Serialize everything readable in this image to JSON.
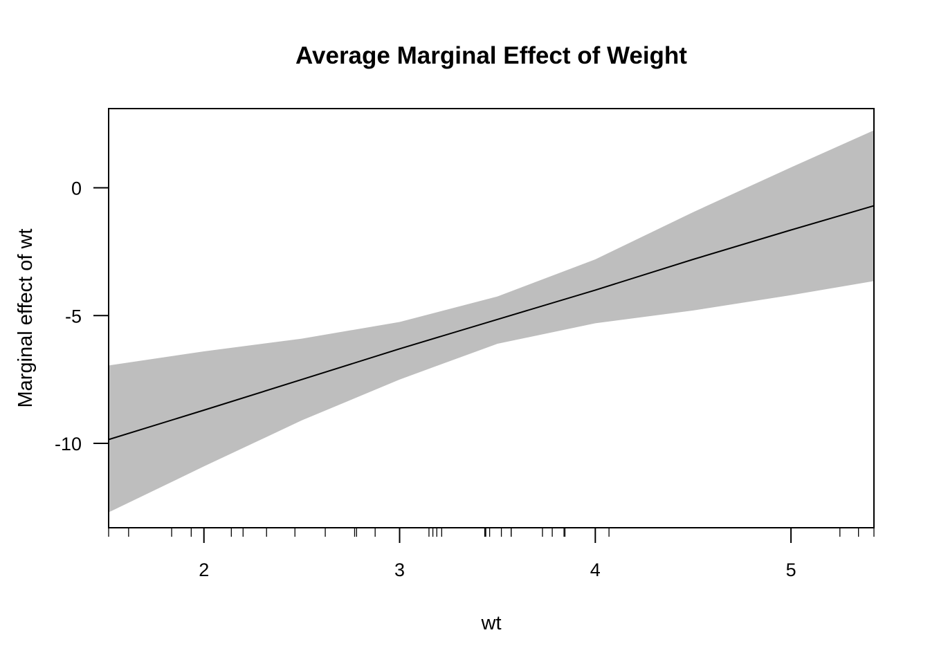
{
  "chart_data": {
    "type": "line",
    "title": "Average Marginal Effect of Weight",
    "xlabel": "wt",
    "ylabel": "Marginal effect of wt",
    "xlim": [
      1.513,
      5.424
    ],
    "ylim": [
      -13.3,
      3.1
    ],
    "xticks": [
      2,
      3,
      4,
      5
    ],
    "yticks": [
      0,
      -5,
      -10
    ],
    "grid": false,
    "legend": "none",
    "colors": {
      "band": "#bebebe",
      "line": "#000000"
    },
    "series": [
      {
        "x": [
          1.513,
          2.0,
          2.5,
          3.0,
          3.5,
          4.0,
          4.5,
          5.0,
          5.424
        ],
        "estimate": [
          -9.85,
          -8.7,
          -7.5,
          -6.3,
          -5.15,
          -4.0,
          -2.8,
          -1.65,
          -0.7
        ],
        "lower": [
          -12.7,
          -10.9,
          -9.1,
          -7.5,
          -6.1,
          -5.3,
          -4.8,
          -4.2,
          -3.65
        ],
        "upper": [
          -6.95,
          -6.4,
          -5.9,
          -5.25,
          -4.25,
          -2.8,
          -0.95,
          0.8,
          2.25
        ]
      }
    ],
    "rug": [
      1.513,
      1.615,
      1.835,
      1.935,
      2.14,
      2.2,
      2.32,
      2.465,
      2.62,
      2.77,
      2.78,
      2.875,
      3.15,
      3.17,
      3.19,
      3.215,
      3.435,
      3.44,
      3.44,
      3.44,
      3.46,
      3.52,
      3.57,
      3.57,
      3.73,
      3.78,
      3.84,
      3.845,
      4.07,
      5.25,
      5.345,
      5.424
    ]
  }
}
